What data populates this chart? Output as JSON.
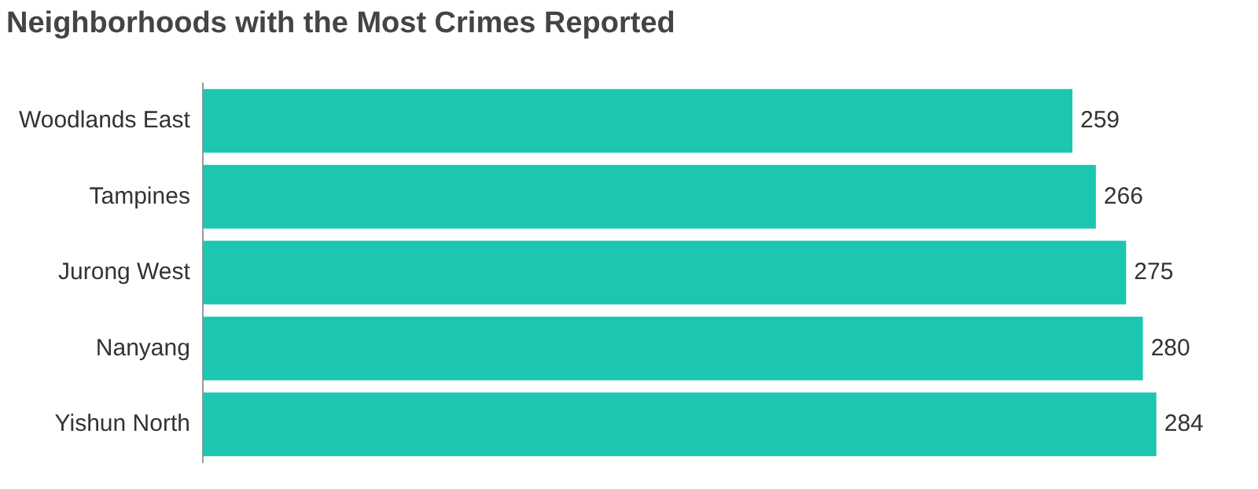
{
  "chart_data": {
    "type": "bar",
    "orientation": "horizontal",
    "title": "Neighborhoods with the Most Crimes Reported",
    "categories": [
      "Woodlands East",
      "Tampines",
      "Jurong West",
      "Nanyang",
      "Yishun North"
    ],
    "values": [
      259,
      266,
      275,
      280,
      284
    ],
    "color": "#1dc6b0",
    "data_labels": true
  }
}
